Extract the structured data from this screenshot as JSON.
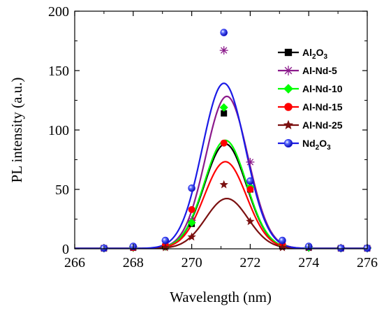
{
  "chart_data": {
    "type": "line",
    "xlabel": "Wavelength (nm)",
    "ylabel": "PL intensity (a.u.)",
    "xlim": [
      266,
      276
    ],
    "ylim": [
      0,
      200
    ],
    "xticks": [
      "266",
      "268",
      "270",
      "272",
      "274",
      "276"
    ],
    "yticks": [
      "0",
      "50",
      "100",
      "150",
      "200"
    ],
    "legend_position": "top-right",
    "series": [
      {
        "name": "Al2O3",
        "legend_main": "Al",
        "legend_sub1": "2",
        "legend_mid": "O",
        "legend_sub2": "3",
        "color": "#000000",
        "marker": "square",
        "points": [
          [
            267,
            0.5
          ],
          [
            268,
            1
          ],
          [
            269.1,
            2
          ],
          [
            270,
            21
          ],
          [
            271.1,
            114
          ],
          [
            272,
            50
          ],
          [
            273.1,
            2
          ],
          [
            274,
            1
          ],
          [
            275.1,
            0.5
          ],
          [
            276,
            0.5
          ]
        ],
        "fit": {
          "center": 271.15,
          "amplitude": 88,
          "sigma": 0.72
        }
      },
      {
        "name": "Al-Nd-5",
        "legend_main": "Al-Nd-5",
        "color": "#8B1A8B",
        "marker": "asterisk",
        "points": [
          [
            267,
            0.5
          ],
          [
            268,
            1
          ],
          [
            269.1,
            2
          ],
          [
            270,
            24
          ],
          [
            271.1,
            167
          ],
          [
            272,
            73
          ],
          [
            273.1,
            3
          ],
          [
            274,
            1
          ],
          [
            275.1,
            0.5
          ],
          [
            276,
            0.5
          ]
        ],
        "fit": {
          "center": 271.2,
          "amplitude": 128,
          "sigma": 0.72
        }
      },
      {
        "name": "Al-Nd-10",
        "legend_main": "Al-Nd-10",
        "color": "#00FF00",
        "marker": "diamond",
        "points": [
          [
            267,
            0.5
          ],
          [
            268,
            1
          ],
          [
            269.1,
            2
          ],
          [
            270,
            22
          ],
          [
            271.1,
            119
          ],
          [
            272,
            52
          ],
          [
            273.1,
            3
          ],
          [
            274,
            1
          ],
          [
            275.1,
            0.5
          ],
          [
            276,
            0.5
          ]
        ],
        "fit": {
          "center": 271.15,
          "amplitude": 91,
          "sigma": 0.72
        }
      },
      {
        "name": "Al-Nd-15",
        "legend_main": "Al-Nd-15",
        "color": "#FF0000",
        "marker": "circle",
        "points": [
          [
            267,
            0.5
          ],
          [
            268,
            1
          ],
          [
            269.1,
            3
          ],
          [
            270,
            33
          ],
          [
            271.1,
            89
          ],
          [
            272,
            50
          ],
          [
            273.1,
            4
          ],
          [
            274,
            2
          ],
          [
            275.1,
            0.5
          ],
          [
            276,
            0.5
          ]
        ],
        "fit": {
          "center": 271.15,
          "amplitude": 73,
          "sigma": 0.72
        }
      },
      {
        "name": "Al-Nd-25",
        "legend_main": "Al-Nd-25",
        "color": "#7B1010",
        "marker": "star",
        "points": [
          [
            267,
            0.5
          ],
          [
            268,
            1
          ],
          [
            269.1,
            1
          ],
          [
            270,
            10
          ],
          [
            271.1,
            54
          ],
          [
            272,
            23
          ],
          [
            273.1,
            1
          ],
          [
            274,
            1
          ],
          [
            275.1,
            0.5
          ],
          [
            276,
            0.5
          ]
        ],
        "fit": {
          "center": 271.2,
          "amplitude": 42,
          "sigma": 0.72
        }
      },
      {
        "name": "Nd2O3",
        "legend_main": "Nd",
        "legend_sub1": "2",
        "legend_mid": "O",
        "legend_sub2": "3",
        "color": "#1A1AE6",
        "marker": "sphere",
        "points": [
          [
            267,
            0.5
          ],
          [
            268,
            2
          ],
          [
            269.1,
            7
          ],
          [
            270,
            51
          ],
          [
            271.1,
            182
          ],
          [
            272,
            57
          ],
          [
            273.1,
            7
          ],
          [
            274,
            2
          ],
          [
            275.1,
            0.5
          ],
          [
            276,
            0.5
          ]
        ],
        "fit": {
          "center": 271.1,
          "amplitude": 139,
          "sigma": 0.74
        }
      }
    ]
  }
}
